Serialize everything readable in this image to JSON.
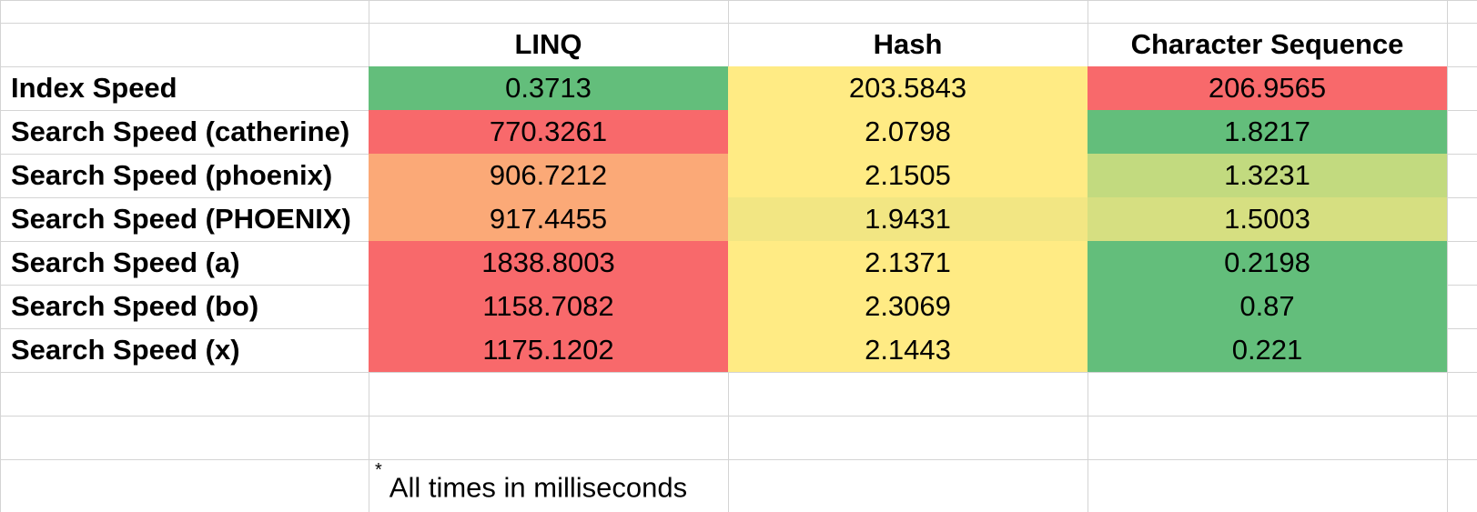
{
  "table": {
    "columns": [
      "LINQ",
      "Hash",
      "Character Sequence"
    ],
    "rows": [
      {
        "label": "Index Speed",
        "values": [
          "0.3713",
          "203.5843",
          "206.9565"
        ],
        "colors": [
          "#63be7b",
          "#ffeb84",
          "#f8696b"
        ]
      },
      {
        "label": "Search Speed (catherine)",
        "values": [
          "770.3261",
          "2.0798",
          "1.8217"
        ],
        "colors": [
          "#f8696b",
          "#ffeb84",
          "#63be7b"
        ]
      },
      {
        "label": "Search Speed (phoenix)",
        "values": [
          "906.7212",
          "2.1505",
          "1.3231"
        ],
        "colors": [
          "#fba977",
          "#ffeb84",
          "#c2da7f"
        ]
      },
      {
        "label": "Search Speed (PHOENIX)",
        "values": [
          "917.4455",
          "1.9431",
          "1.5003"
        ],
        "colors": [
          "#fba977",
          "#f2e683",
          "#d6df81"
        ]
      },
      {
        "label": "Search Speed (a)",
        "values": [
          "1838.8003",
          "2.1371",
          "0.2198"
        ],
        "colors": [
          "#f8696b",
          "#ffeb84",
          "#63be7b"
        ]
      },
      {
        "label": "Search Speed (bo)",
        "values": [
          "1158.7082",
          "2.3069",
          "0.87"
        ],
        "colors": [
          "#f8696b",
          "#ffeb84",
          "#63be7b"
        ]
      },
      {
        "label": "Search Speed (x)",
        "values": [
          "1175.1202",
          "2.1443",
          "0.221"
        ],
        "colors": [
          "#f8696b",
          "#ffeb84",
          "#63be7b"
        ]
      }
    ]
  },
  "footnote": {
    "marker": "*",
    "text": "All times in milliseconds"
  }
}
